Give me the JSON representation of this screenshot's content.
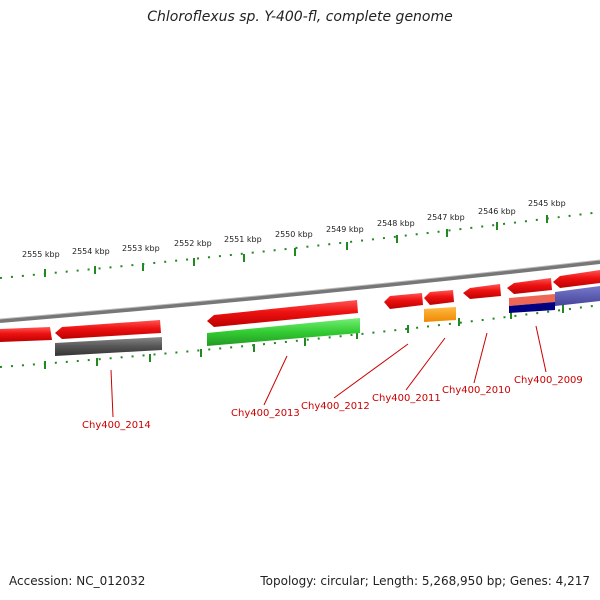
{
  "title": "Chloroflexus sp. Y-400-fl, complete genome",
  "footer": {
    "accession": "Accession: NC_012032",
    "summary": "Topology: circular; Length: 5,268,950 bp; Genes: 4,217"
  },
  "colors": {
    "gene_red": "#ee1111",
    "gene_green": "#33cc33",
    "gene_gray": "#555555",
    "gene_orange": "#ff9900",
    "gene_navy": "#000080",
    "gene_blue": "#5555aa",
    "gene_salmon": "#ee6655",
    "tick_green": "#228822",
    "label_red": "#cc0000",
    "backbone_gray": "#888888"
  },
  "kbp_labels": [
    "2555 kbp",
    "2554 kbp",
    "2553 kbp",
    "2552 kbp",
    "2551 kbp",
    "2550 kbp",
    "2549 kbp",
    "2548 kbp",
    "2547 kbp",
    "2546 kbp",
    "2545 kbp"
  ],
  "gene_labels": [
    "Chy400_2014",
    "Chy400_2013",
    "Chy400_2012",
    "Chy400_2011",
    "Chy400_2010",
    "Chy400_2009"
  ]
}
